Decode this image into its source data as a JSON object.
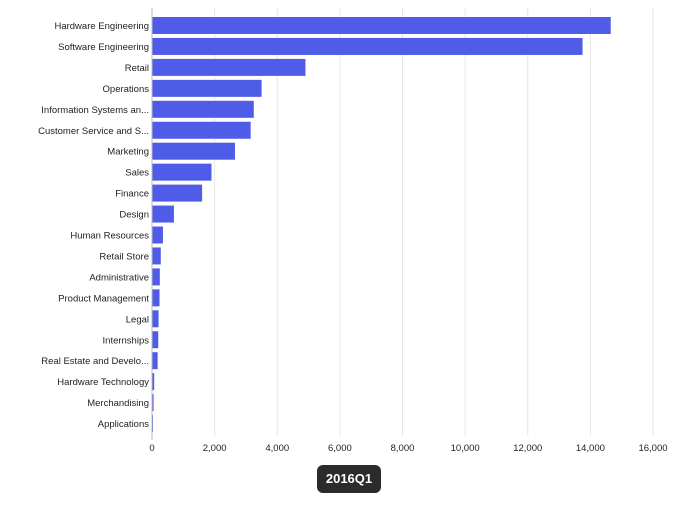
{
  "chart_data": {
    "type": "bar",
    "orientation": "horizontal",
    "title": "",
    "xlabel": "",
    "ylabel": "",
    "categories": [
      "Hardware Engineering",
      "Software Engineering",
      "Retail",
      "Operations",
      "Information Systems an...",
      "Customer Service and S...",
      "Marketing",
      "Sales",
      "Finance",
      "Design",
      "Human Resources",
      "Retail Store",
      "Administrative",
      "Product Management",
      "Legal",
      "Internships",
      "Real Estate and Develo...",
      "Hardware Technology",
      "Merchandising",
      "Applications"
    ],
    "values": [
      14650,
      13750,
      4900,
      3500,
      3250,
      3150,
      2650,
      1900,
      1600,
      700,
      350,
      280,
      250,
      240,
      210,
      200,
      180,
      70,
      50,
      30
    ],
    "xlim": [
      0,
      16000
    ],
    "x_ticks": [
      0,
      2000,
      4000,
      6000,
      8000,
      10000,
      12000,
      14000,
      16000
    ],
    "x_tick_labels": [
      "0",
      "2,000",
      "4,000",
      "6,000",
      "8,000",
      "10,000",
      "12,000",
      "14,000",
      "16,000"
    ],
    "grid": true,
    "bar_color": "#4f5ce8",
    "gridline_color": "#e6e6e6",
    "axis_color": "#bdbdbd"
  },
  "period_badge": {
    "label": "2016Q1"
  }
}
